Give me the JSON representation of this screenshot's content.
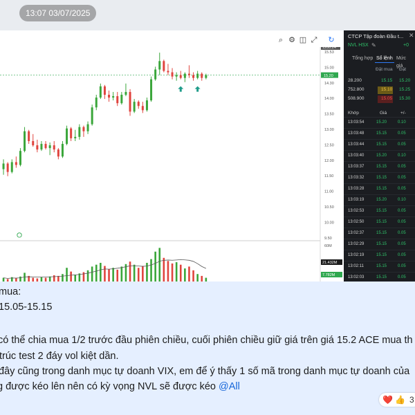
{
  "message": {
    "timestamp": "13:07 03/07/2025",
    "text_lines": [
      "mua:",
      " 15.05-15.15",
      "",
      "có thể chia mua 1/2 trước đầu phiên chiều, cuối phiên chiều giữ giá trên giá 15.2 ACE mua th",
      "trúc test 2 đáy vol kiệt dần.",
      "đây cũng trong danh mục tự doanh VIX, em để ý thấy 1 số mã trong danh mục tự doanh của",
      "g được kéo lên nên có kỳ vọng NVL sẽ được kéo "
    ],
    "mention": "@All",
    "reactions": {
      "emojis": [
        "❤️",
        "👍"
      ],
      "count": "3"
    }
  },
  "toolbar": {
    "icons": [
      "search-icon",
      "settings-icon",
      "screenshot-icon",
      "refresh-icon"
    ]
  },
  "chart_data": {
    "type": "candlestick",
    "price_axis_ticks": [
      "15.53",
      "15.00",
      "14.30",
      "14.00",
      "13.50",
      "13.00",
      "12.50",
      "12.00",
      "11.50",
      "11.00",
      "10.50",
      "10.00",
      "9.50"
    ],
    "current_price_label": "15.20",
    "top_label": "1200.24",
    "volume_axis_ticks": [
      "60M"
    ],
    "volume_labels": [
      "21.432M",
      "7.782M"
    ],
    "colors": {
      "up": "#3aa63a",
      "down": "#e0443e",
      "ma": "#555555"
    },
    "candles": [
      {
        "o": 11.85,
        "h": 12.2,
        "l": 11.65,
        "c": 12.05
      },
      {
        "o": 12.05,
        "h": 12.1,
        "l": 11.6,
        "c": 11.75
      },
      {
        "o": 11.75,
        "h": 12.2,
        "l": 11.7,
        "c": 12.1
      },
      {
        "o": 12.1,
        "h": 12.3,
        "l": 11.9,
        "c": 12.0
      },
      {
        "o": 12.0,
        "h": 12.6,
        "l": 11.95,
        "c": 12.5
      },
      {
        "o": 12.5,
        "h": 13.35,
        "l": 12.45,
        "c": 13.2
      },
      {
        "o": 13.2,
        "h": 13.25,
        "l": 12.75,
        "c": 12.85
      },
      {
        "o": 12.85,
        "h": 13.1,
        "l": 12.65,
        "c": 12.7
      },
      {
        "o": 12.7,
        "h": 12.9,
        "l": 12.45,
        "c": 12.55
      },
      {
        "o": 12.55,
        "h": 12.85,
        "l": 12.5,
        "c": 12.75
      },
      {
        "o": 12.75,
        "h": 12.85,
        "l": 12.55,
        "c": 12.6
      },
      {
        "o": 12.6,
        "h": 12.8,
        "l": 12.35,
        "c": 12.7
      },
      {
        "o": 12.7,
        "h": 12.85,
        "l": 12.45,
        "c": 12.55
      },
      {
        "o": 12.55,
        "h": 12.6,
        "l": 12.2,
        "c": 12.3
      },
      {
        "o": 12.3,
        "h": 12.85,
        "l": 12.25,
        "c": 12.75
      },
      {
        "o": 12.75,
        "h": 13.4,
        "l": 12.7,
        "c": 13.3
      },
      {
        "o": 13.3,
        "h": 13.35,
        "l": 12.85,
        "c": 12.95
      },
      {
        "o": 12.95,
        "h": 13.25,
        "l": 12.85,
        "c": 13.0
      },
      {
        "o": 13.0,
        "h": 13.45,
        "l": 12.9,
        "c": 13.35
      },
      {
        "o": 13.35,
        "h": 13.4,
        "l": 13.0,
        "c": 13.2
      },
      {
        "o": 13.2,
        "h": 13.55,
        "l": 13.1,
        "c": 13.45
      },
      {
        "o": 13.45,
        "h": 14.15,
        "l": 13.4,
        "c": 14.05
      },
      {
        "o": 14.05,
        "h": 14.5,
        "l": 13.95,
        "c": 14.4
      },
      {
        "o": 14.4,
        "h": 14.9,
        "l": 14.35,
        "c": 14.8
      },
      {
        "o": 14.8,
        "h": 14.85,
        "l": 14.35,
        "c": 14.5
      },
      {
        "o": 14.5,
        "h": 14.65,
        "l": 14.25,
        "c": 14.4
      },
      {
        "o": 14.4,
        "h": 14.6,
        "l": 14.3,
        "c": 14.45
      },
      {
        "o": 14.45,
        "h": 14.6,
        "l": 14.1,
        "c": 14.2
      },
      {
        "o": 14.2,
        "h": 14.6,
        "l": 14.15,
        "c": 14.5
      },
      {
        "o": 14.5,
        "h": 14.9,
        "l": 14.45,
        "c": 14.6
      },
      {
        "o": 14.6,
        "h": 14.7,
        "l": 13.75,
        "c": 13.9
      },
      {
        "o": 13.9,
        "h": 14.35,
        "l": 13.85,
        "c": 14.25
      },
      {
        "o": 14.25,
        "h": 14.3,
        "l": 14.0,
        "c": 14.1
      },
      {
        "o": 14.1,
        "h": 14.25,
        "l": 13.85,
        "c": 13.95
      },
      {
        "o": 13.95,
        "h": 14.4,
        "l": 13.9,
        "c": 14.3
      },
      {
        "o": 14.3,
        "h": 15.15,
        "l": 14.25,
        "c": 15.05
      },
      {
        "o": 15.05,
        "h": 15.5,
        "l": 15.0,
        "c": 15.4
      },
      {
        "o": 15.4,
        "h": 16.0,
        "l": 15.2,
        "c": 15.7
      },
      {
        "o": 15.7,
        "h": 15.75,
        "l": 15.3,
        "c": 15.35
      },
      {
        "o": 15.35,
        "h": 15.6,
        "l": 15.2,
        "c": 15.3
      },
      {
        "o": 15.3,
        "h": 15.45,
        "l": 15.05,
        "c": 15.15
      },
      {
        "o": 15.15,
        "h": 15.3,
        "l": 15.0,
        "c": 15.2
      },
      {
        "o": 15.2,
        "h": 15.35,
        "l": 15.05,
        "c": 15.1
      },
      {
        "o": 15.1,
        "h": 15.3,
        "l": 14.95,
        "c": 15.25
      },
      {
        "o": 15.25,
        "h": 15.55,
        "l": 15.1,
        "c": 15.2
      },
      {
        "o": 15.2,
        "h": 15.3,
        "l": 15.0,
        "c": 15.1
      },
      {
        "o": 15.1,
        "h": 15.35,
        "l": 15.05,
        "c": 15.25
      },
      {
        "o": 15.25,
        "h": 15.3,
        "l": 15.0,
        "c": 15.1
      },
      {
        "o": 15.1,
        "h": 15.25,
        "l": 15.05,
        "c": 15.2
      }
    ],
    "volumes": [
      6,
      4,
      7,
      5,
      8,
      14,
      9,
      6,
      5,
      7,
      6,
      8,
      10,
      9,
      12,
      22,
      16,
      11,
      13,
      15,
      18,
      24,
      27,
      30,
      25,
      20,
      22,
      19,
      24,
      28,
      32,
      27,
      22,
      25,
      30,
      36,
      48,
      54,
      38,
      33,
      29,
      31,
      27,
      21,
      24,
      18,
      12,
      9,
      6
    ],
    "markers": [
      {
        "type": "arrow-up",
        "index": 42
      },
      {
        "type": "arrow-up",
        "index": 46
      }
    ]
  },
  "sidebar": {
    "title": "CTCP Tập đoàn Đầu t...",
    "symbol": "NVL HSX",
    "change": "+0",
    "tabs": [
      "Tổng hợp",
      "Sổ lệnh",
      "Mức giá"
    ],
    "orderbook_headers": {
      "bid": "Đặt mua",
      "ask": "Đặt"
    },
    "orderbook": [
      {
        "vol": "28.200",
        "bid": "15.15",
        "ask": "15.20"
      },
      {
        "vol": "752.800",
        "bid": "15.10",
        "ask": "15.25"
      },
      {
        "vol": "508.900",
        "bid": "15.05",
        "ask": "15.30"
      }
    ],
    "trade_headers": [
      "Khớp",
      "Giá",
      "+/-"
    ],
    "trades": [
      {
        "time": "13:03:54",
        "price": "15.20",
        "chg": "0.10"
      },
      {
        "time": "13:03:48",
        "price": "15.15",
        "chg": "0.05"
      },
      {
        "time": "13:03:44",
        "price": "15.15",
        "chg": "0.05"
      },
      {
        "time": "13:03:40",
        "price": "15.20",
        "chg": "0.10"
      },
      {
        "time": "13:03:37",
        "price": "15.15",
        "chg": "0.05"
      },
      {
        "time": "13:03:32",
        "price": "15.15",
        "chg": "0.05"
      },
      {
        "time": "13:03:28",
        "price": "15.15",
        "chg": "0.05"
      },
      {
        "time": "13:03:19",
        "price": "15.20",
        "chg": "0.10"
      },
      {
        "time": "13:02:53",
        "price": "15.15",
        "chg": "0.05"
      },
      {
        "time": "13:02:50",
        "price": "15.15",
        "chg": "0.05"
      },
      {
        "time": "13:02:37",
        "price": "15.15",
        "chg": "0.05"
      },
      {
        "time": "13:02:29",
        "price": "15.15",
        "chg": "0.05"
      },
      {
        "time": "13:02:19",
        "price": "15.15",
        "chg": "0.05"
      },
      {
        "time": "13:02:11",
        "price": "15.15",
        "chg": "0.05"
      },
      {
        "time": "13:02:03",
        "price": "15.15",
        "chg": "0.05"
      },
      {
        "time": "13:01:41",
        "price": "15.15",
        "chg": "0.05"
      }
    ]
  }
}
